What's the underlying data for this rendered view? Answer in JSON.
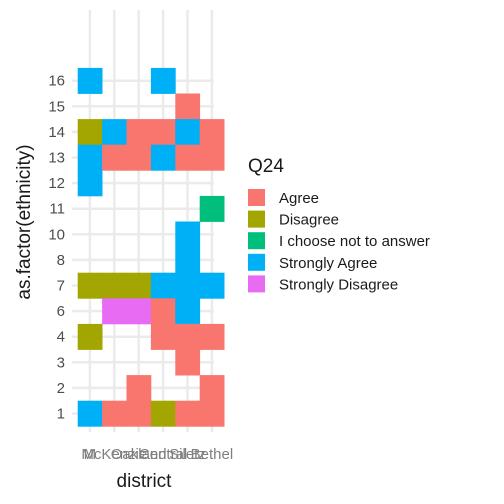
{
  "chart_data": {
    "type": "heatmap",
    "xlabel": "district",
    "ylabel": "as.factor(ethnicity)",
    "x_categories": [
      "M",
      "McKenzie",
      "Oakland",
      "Central",
      "Siletz",
      "Bethel"
    ],
    "y_categories": [
      "1",
      "2",
      "3",
      "4",
      "6",
      "7",
      "8",
      "10",
      "11",
      "12",
      "13",
      "14",
      "15",
      "16"
    ],
    "grid": true,
    "legend": {
      "title": "Q24",
      "position": "right",
      "entries": [
        {
          "label": "Agree",
          "color": "#F8766D"
        },
        {
          "label": "Disagree",
          "color": "#A3A500"
        },
        {
          "label": "I choose not to answer",
          "color": "#00BF7D"
        },
        {
          "label": "Strongly Agree",
          "color": "#00B0F6"
        },
        {
          "label": "Strongly Disagree",
          "color": "#E76BF3"
        }
      ]
    },
    "cells": [
      {
        "x": "M",
        "y": "16",
        "value": "Strongly Agree"
      },
      {
        "x": "Central",
        "y": "16",
        "value": "Strongly Agree"
      },
      {
        "x": "Siletz",
        "y": "15",
        "value": "Agree"
      },
      {
        "x": "M",
        "y": "14",
        "value": "Disagree"
      },
      {
        "x": "McKenzie",
        "y": "14",
        "value": "Strongly Agree"
      },
      {
        "x": "Oakland",
        "y": "14",
        "value": "Agree"
      },
      {
        "x": "Central",
        "y": "14",
        "value": "Agree"
      },
      {
        "x": "Siletz",
        "y": "14",
        "value": "Strongly Agree"
      },
      {
        "x": "Bethel",
        "y": "14",
        "value": "Agree"
      },
      {
        "x": "M",
        "y": "13",
        "value": "Strongly Agree"
      },
      {
        "x": "McKenzie",
        "y": "13",
        "value": "Agree"
      },
      {
        "x": "Oakland",
        "y": "13",
        "value": "Agree"
      },
      {
        "x": "Central",
        "y": "13",
        "value": "Strongly Agree"
      },
      {
        "x": "Siletz",
        "y": "13",
        "value": "Agree"
      },
      {
        "x": "Bethel",
        "y": "13",
        "value": "Agree"
      },
      {
        "x": "M",
        "y": "12",
        "value": "Strongly Agree"
      },
      {
        "x": "Bethel",
        "y": "11",
        "value": "I choose not to answer"
      },
      {
        "x": "Siletz",
        "y": "10",
        "value": "Strongly Agree"
      },
      {
        "x": "Siletz",
        "y": "8",
        "value": "Strongly Agree"
      },
      {
        "x": "M",
        "y": "7",
        "value": "Disagree"
      },
      {
        "x": "McKenzie",
        "y": "7",
        "value": "Disagree"
      },
      {
        "x": "Oakland",
        "y": "7",
        "value": "Disagree"
      },
      {
        "x": "Central",
        "y": "7",
        "value": "Strongly Agree"
      },
      {
        "x": "Siletz",
        "y": "7",
        "value": "Strongly Agree"
      },
      {
        "x": "Bethel",
        "y": "7",
        "value": "Strongly Agree"
      },
      {
        "x": "McKenzie",
        "y": "6",
        "value": "Strongly Disagree"
      },
      {
        "x": "Oakland",
        "y": "6",
        "value": "Strongly Disagree"
      },
      {
        "x": "Central",
        "y": "6",
        "value": "Agree"
      },
      {
        "x": "Siletz",
        "y": "6",
        "value": "Strongly Agree"
      },
      {
        "x": "M",
        "y": "4",
        "value": "Disagree"
      },
      {
        "x": "Central",
        "y": "4",
        "value": "Agree"
      },
      {
        "x": "Siletz",
        "y": "4",
        "value": "Agree"
      },
      {
        "x": "Bethel",
        "y": "4",
        "value": "Agree"
      },
      {
        "x": "Siletz",
        "y": "3",
        "value": "Agree"
      },
      {
        "x": "Oakland",
        "y": "2",
        "value": "Agree"
      },
      {
        "x": "Bethel",
        "y": "2",
        "value": "Agree"
      },
      {
        "x": "M",
        "y": "1",
        "value": "Strongly Agree"
      },
      {
        "x": "McKenzie",
        "y": "1",
        "value": "Agree"
      },
      {
        "x": "Oakland",
        "y": "1",
        "value": "Agree"
      },
      {
        "x": "Central",
        "y": "1",
        "value": "Disagree"
      },
      {
        "x": "Siletz",
        "y": "1",
        "value": "Agree"
      },
      {
        "x": "Bethel",
        "y": "1",
        "value": "Agree"
      }
    ]
  }
}
